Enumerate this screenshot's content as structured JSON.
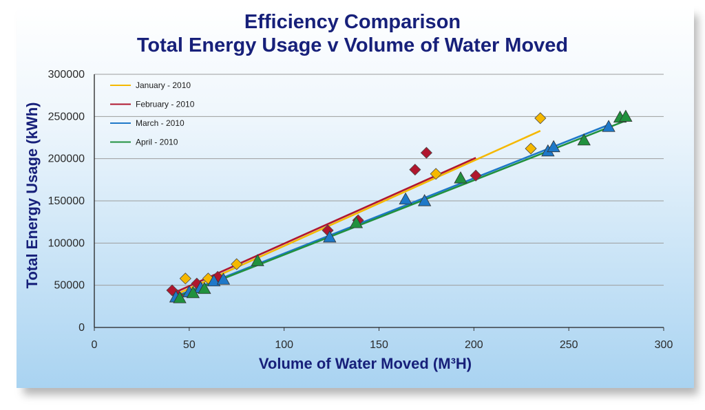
{
  "chart_data": {
    "type": "scatter",
    "title": "Efficiency Comparison",
    "subtitle": "Total Energy Usage v Volume of Water Moved",
    "xlabel": "Volume of Water Moved (M³H)",
    "ylabel": "Total Energy Usage (kWh)",
    "xlim": [
      0,
      300
    ],
    "ylim": [
      0,
      300000
    ],
    "x_ticks": [
      "0",
      "50",
      "100",
      "150",
      "200",
      "250",
      "300"
    ],
    "y_ticks": [
      "0",
      "50000",
      "100000",
      "150000",
      "200000",
      "250000",
      "300000"
    ],
    "grid": "horizontal",
    "legend_position": "top-left",
    "series": [
      {
        "name": "January - 2010",
        "color": "#f5b800",
        "marker": "diamond",
        "points": [
          [
            48,
            58000
          ],
          [
            60,
            58000
          ],
          [
            75,
            75000
          ],
          [
            180,
            182000
          ],
          [
            230,
            212000
          ],
          [
            235,
            248000
          ]
        ],
        "trendline": [
          [
            42,
            38000
          ],
          [
            235,
            233000
          ]
        ]
      },
      {
        "name": "February - 2010",
        "color": "#b0162e",
        "marker": "diamond",
        "points": [
          [
            41,
            44000
          ],
          [
            44,
            38000
          ],
          [
            54,
            52000
          ],
          [
            65,
            60000
          ],
          [
            123,
            115000
          ],
          [
            139,
            127000
          ],
          [
            169,
            187000
          ],
          [
            175,
            207000
          ],
          [
            201,
            180000
          ]
        ],
        "trendline": [
          [
            42,
            41000
          ],
          [
            201,
            201000
          ]
        ]
      },
      {
        "name": "March - 2010",
        "color": "#1e78c8",
        "marker": "triangle",
        "points": [
          [
            43,
            36000
          ],
          [
            50,
            42000
          ],
          [
            56,
            47000
          ],
          [
            63,
            55000
          ],
          [
            68,
            57000
          ],
          [
            124,
            107000
          ],
          [
            164,
            152000
          ],
          [
            174,
            150000
          ],
          [
            239,
            209000
          ],
          [
            242,
            214000
          ],
          [
            271,
            238000
          ]
        ],
        "trendline": [
          [
            42,
            36000
          ],
          [
            272,
            241000
          ]
        ]
      },
      {
        "name": "April - 2010",
        "color": "#21913e",
        "marker": "triangle",
        "points": [
          [
            45,
            35000
          ],
          [
            52,
            41000
          ],
          [
            58,
            46000
          ],
          [
            86,
            79000
          ],
          [
            138,
            124000
          ],
          [
            193,
            177000
          ],
          [
            258,
            222000
          ],
          [
            277,
            249000
          ],
          [
            280,
            250000
          ]
        ],
        "trendline": [
          [
            42,
            35000
          ],
          [
            280,
            245000
          ]
        ]
      }
    ]
  }
}
